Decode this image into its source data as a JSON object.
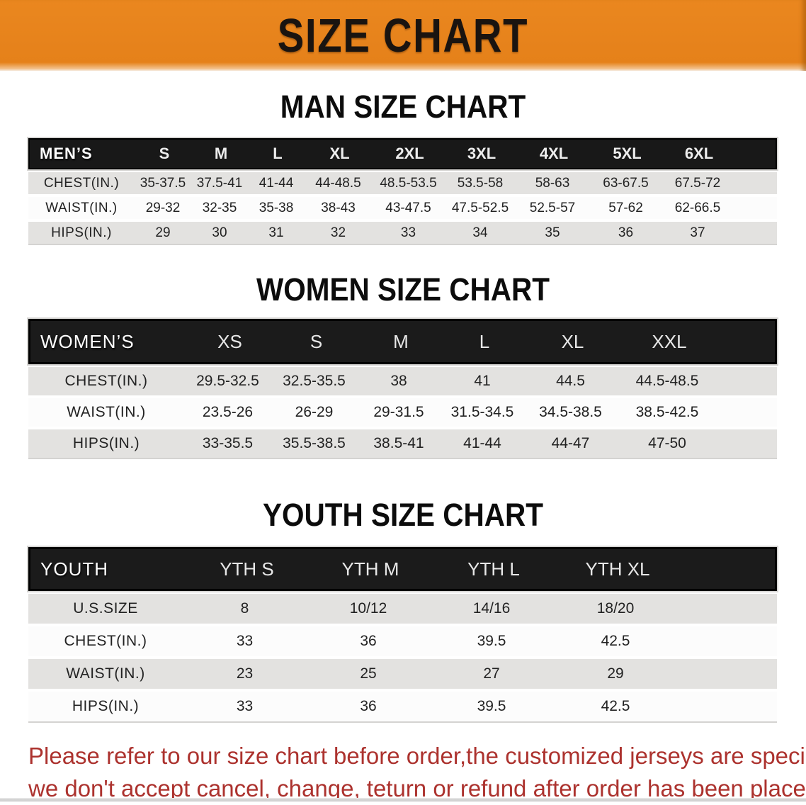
{
  "banner": {
    "title": "SIZE CHART"
  },
  "colors": {
    "banner_bg": "#E6821B",
    "header_bar": "#1B1B1B",
    "row_gray": "#E3E2E0",
    "row_white": "#FCFCFC",
    "note_red": "#AC322E"
  },
  "men": {
    "title": "MAN SIZE CHART",
    "header_label": "MEN’S",
    "columns": [
      "S",
      "M",
      "L",
      "XL",
      "2XL",
      "3XL",
      "4XL",
      "5XL",
      "6XL"
    ],
    "rows": [
      {
        "label": "CHEST(IN.)",
        "values": [
          "35-37.5",
          "37.5-41",
          "41-44",
          "44-48.5",
          "48.5-53.5",
          "53.5-58",
          "58-63",
          "63-67.5",
          "67.5-72"
        ]
      },
      {
        "label": "WAIST(IN.)",
        "values": [
          "29-32",
          "32-35",
          "35-38",
          "38-43",
          "43-47.5",
          "47.5-52.5",
          "52.5-57",
          "57-62",
          "62-66.5"
        ]
      },
      {
        "label": "HIPS(IN.)",
        "values": [
          "29",
          "30",
          "31",
          "32",
          "33",
          "34",
          "35",
          "36",
          "37"
        ]
      }
    ]
  },
  "women": {
    "title": "WOMEN SIZE CHART",
    "header_label": "WOMEN’S",
    "columns": [
      "XS",
      "S",
      "M",
      "L",
      "XL",
      "XXL"
    ],
    "rows": [
      {
        "label": "CHEST(IN.)",
        "values": [
          "29.5-32.5",
          "32.5-35.5",
          "38",
          "41",
          "44.5",
          "44.5-48.5"
        ]
      },
      {
        "label": "WAIST(IN.)",
        "values": [
          "23.5-26",
          "26-29",
          "29-31.5",
          "31.5-34.5",
          "34.5-38.5",
          "38.5-42.5"
        ]
      },
      {
        "label": "HIPS(IN.)",
        "values": [
          "33-35.5",
          "35.5-38.5",
          "38.5-41",
          "41-44",
          "44-47",
          "47-50"
        ]
      }
    ]
  },
  "youth": {
    "title": "YOUTH SIZE CHART",
    "header_label": "YOUTH",
    "columns": [
      "YTH S",
      "YTH M",
      "YTH L",
      "YTH XL"
    ],
    "rows": [
      {
        "label": "U.S.SIZE",
        "values": [
          "8",
          "10/12",
          "14/16",
          "18/20"
        ]
      },
      {
        "label": "CHEST(IN.)",
        "values": [
          "33",
          "36",
          "39.5",
          "42.5"
        ]
      },
      {
        "label": "WAIST(IN.)",
        "values": [
          "23",
          "25",
          "27",
          "29"
        ]
      },
      {
        "label": "HIPS(IN.)",
        "values": [
          "33",
          "36",
          "39.5",
          "42.5"
        ]
      }
    ]
  },
  "footer": {
    "line1": "Please refer to our size chart before order,the customized jerseys are special products,",
    "line2": "we don't accept cancel, change, teturn or refund after order has been placed!"
  }
}
